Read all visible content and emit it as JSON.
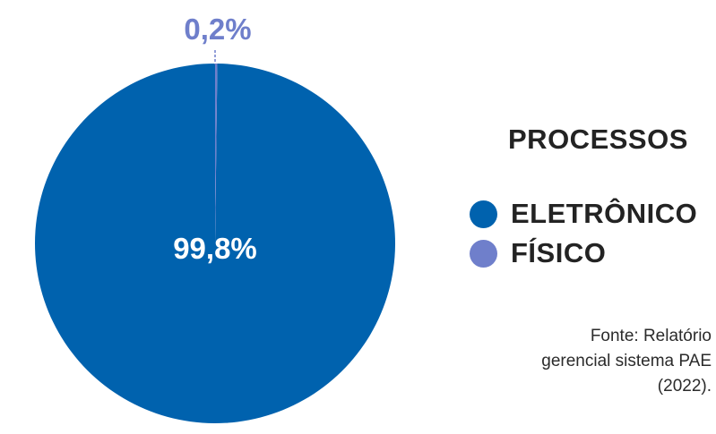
{
  "chart_data": {
    "type": "pie",
    "categories": [
      "ELETRÔNICO",
      "FÍSICO"
    ],
    "values": [
      99.8,
      0.2
    ],
    "value_labels": [
      "99,8%",
      "0,2%"
    ],
    "colors": [
      "#0062ae",
      "#6f7fcb"
    ],
    "legend_title": "PROCESSOS",
    "legend_position": "right"
  },
  "source": {
    "line1": "Fonte: Relatório",
    "line2": "gerencial sistema PAE",
    "line3": "(2022)."
  }
}
